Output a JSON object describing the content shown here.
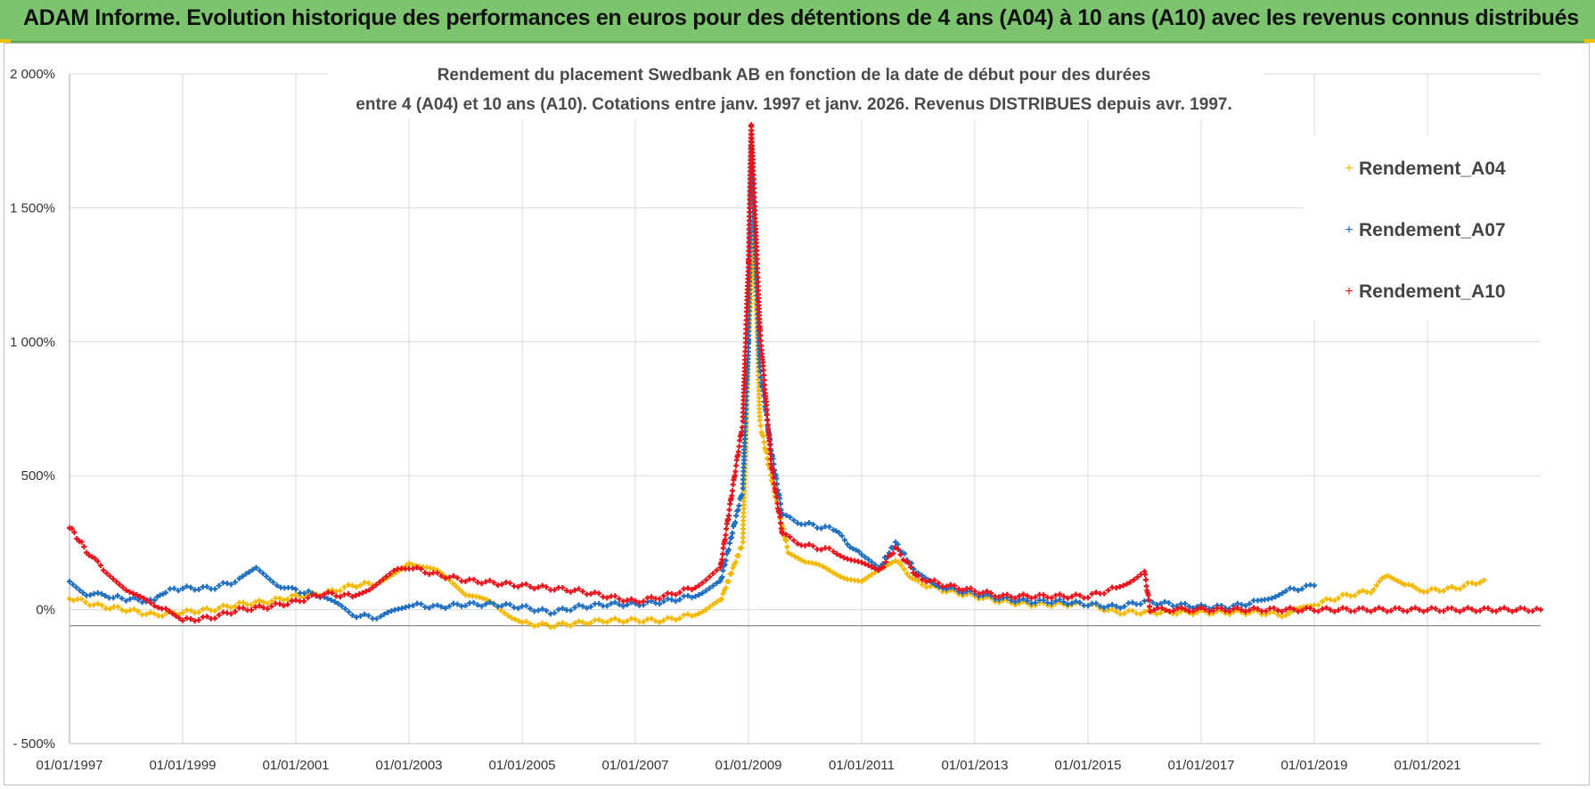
{
  "header": {
    "title": "ADAM Informe. Evolution historique des performances en euros pour des détentions de 4 ans (A04) à 10 ans (A10) avec les revenus connus distribués"
  },
  "colors": {
    "banner": "#7cc46e",
    "A04": "#f5b800",
    "A07": "#1f6fc0",
    "A10": "#e8131b"
  },
  "chart_data": {
    "type": "scatter",
    "title_line1": "Rendement du placement Swedbank AB en fonction de la date de début pour des durées",
    "title_line2": "entre 4 (A04) et 10 ans (A10).  Cotations entre janv. 1997 et janv. 2026. Revenus DISTRIBUES depuis avr. 1997.",
    "xlabel": "",
    "ylabel": "",
    "x_range": [
      1997.0,
      2023.0
    ],
    "ylim": [
      -500,
      2000
    ],
    "y_ticks": [
      2000,
      1500,
      1000,
      500,
      0,
      -500
    ],
    "y_tick_labels": [
      "2 000%",
      "1 500%",
      "1 000%",
      "500%",
      "0%",
      "- 500%"
    ],
    "x_ticks": [
      1997,
      1999,
      2001,
      2003,
      2005,
      2007,
      2009,
      2011,
      2013,
      2015,
      2017,
      2019,
      2021
    ],
    "x_tick_labels": [
      "01/01/1997",
      "01/01/1999",
      "01/01/2001",
      "01/01/2003",
      "01/01/2005",
      "01/01/2007",
      "01/01/2009",
      "01/01/2011",
      "01/01/2013",
      "01/01/2015",
      "01/01/2017",
      "01/01/2019",
      "01/01/2021"
    ],
    "legend_position": "right",
    "series": [
      {
        "name": "Rendement_A04",
        "color": "#f5b800",
        "points": [
          [
            1997.0,
            45
          ],
          [
            1997.5,
            15
          ],
          [
            1998.0,
            0
          ],
          [
            1998.5,
            -20
          ],
          [
            1999.0,
            -10
          ],
          [
            1999.5,
            0
          ],
          [
            2000.0,
            20
          ],
          [
            2000.5,
            30
          ],
          [
            2001.0,
            50
          ],
          [
            2001.5,
            60
          ],
          [
            2002.0,
            90
          ],
          [
            2002.5,
            100
          ],
          [
            2003.0,
            180
          ],
          [
            2003.5,
            140
          ],
          [
            2004.0,
            60
          ],
          [
            2004.5,
            20
          ],
          [
            2005.0,
            -50
          ],
          [
            2005.5,
            -60
          ],
          [
            2006.0,
            -50
          ],
          [
            2006.5,
            -40
          ],
          [
            2007.0,
            -40
          ],
          [
            2007.5,
            -40
          ],
          [
            2008.0,
            -20
          ],
          [
            2008.5,
            30
          ],
          [
            2008.9,
            250
          ],
          [
            2009.0,
            1000
          ],
          [
            2009.1,
            1440
          ],
          [
            2009.2,
            700
          ],
          [
            2009.5,
            400
          ],
          [
            2009.7,
            220
          ],
          [
            2010.0,
            180
          ],
          [
            2010.5,
            140
          ],
          [
            2011.0,
            100
          ],
          [
            2011.3,
            140
          ],
          [
            2011.6,
            180
          ],
          [
            2012.0,
            100
          ],
          [
            2012.5,
            70
          ],
          [
            2013.0,
            50
          ],
          [
            2013.5,
            30
          ],
          [
            2014.0,
            20
          ],
          [
            2015.0,
            20
          ],
          [
            2015.5,
            -10
          ],
          [
            2016.0,
            -10
          ],
          [
            2017.0,
            -10
          ],
          [
            2018.0,
            -10
          ],
          [
            2018.5,
            -20
          ],
          [
            2019.0,
            20
          ],
          [
            2019.5,
            50
          ],
          [
            2020.0,
            70
          ],
          [
            2020.3,
            130
          ],
          [
            2020.6,
            90
          ],
          [
            2021.0,
            70
          ],
          [
            2021.5,
            80
          ],
          [
            2022.0,
            110
          ]
        ]
      },
      {
        "name": "Rendement_A07",
        "color": "#1f6fc0",
        "points": [
          [
            1997.0,
            110
          ],
          [
            1997.3,
            60
          ],
          [
            1997.7,
            50
          ],
          [
            1998.0,
            40
          ],
          [
            1998.5,
            30
          ],
          [
            1998.7,
            70
          ],
          [
            1999.0,
            80
          ],
          [
            1999.5,
            80
          ],
          [
            2000.0,
            110
          ],
          [
            2000.3,
            150
          ],
          [
            2000.6,
            100
          ],
          [
            2001.0,
            70
          ],
          [
            2001.3,
            60
          ],
          [
            2001.5,
            50
          ],
          [
            2002.0,
            -20
          ],
          [
            2002.5,
            -30
          ],
          [
            2003.0,
            20
          ],
          [
            2003.5,
            10
          ],
          [
            2004.0,
            20
          ],
          [
            2004.5,
            20
          ],
          [
            2005.0,
            10
          ],
          [
            2005.5,
            -10
          ],
          [
            2006.0,
            10
          ],
          [
            2006.5,
            20
          ],
          [
            2007.0,
            20
          ],
          [
            2007.5,
            30
          ],
          [
            2008.0,
            50
          ],
          [
            2008.5,
            100
          ],
          [
            2008.9,
            450
          ],
          [
            2009.0,
            1000
          ],
          [
            2009.05,
            1730
          ],
          [
            2009.2,
            900
          ],
          [
            2009.4,
            600
          ],
          [
            2009.6,
            350
          ],
          [
            2010.0,
            320
          ],
          [
            2010.5,
            300
          ],
          [
            2011.0,
            200
          ],
          [
            2011.3,
            150
          ],
          [
            2011.6,
            250
          ],
          [
            2012.0,
            130
          ],
          [
            2012.5,
            80
          ],
          [
            2013.0,
            60
          ],
          [
            2013.5,
            40
          ],
          [
            2014.0,
            30
          ],
          [
            2014.5,
            30
          ],
          [
            2015.0,
            20
          ],
          [
            2015.5,
            10
          ],
          [
            2016.0,
            30
          ],
          [
            2016.5,
            20
          ],
          [
            2017.0,
            10
          ],
          [
            2017.5,
            10
          ],
          [
            2018.0,
            30
          ],
          [
            2018.5,
            70
          ],
          [
            2019.0,
            90
          ]
        ]
      },
      {
        "name": "Rendement_A10",
        "color": "#e8131b",
        "points": [
          [
            1997.0,
            310
          ],
          [
            1997.3,
            220
          ],
          [
            1997.6,
            150
          ],
          [
            1998.0,
            80
          ],
          [
            1998.5,
            10
          ],
          [
            1998.7,
            10
          ],
          [
            1999.0,
            -40
          ],
          [
            1999.5,
            -30
          ],
          [
            2000.0,
            0
          ],
          [
            2000.5,
            10
          ],
          [
            2001.0,
            30
          ],
          [
            2001.5,
            60
          ],
          [
            2002.0,
            50
          ],
          [
            2002.3,
            80
          ],
          [
            2002.6,
            130
          ],
          [
            2003.0,
            160
          ],
          [
            2003.5,
            130
          ],
          [
            2004.0,
            110
          ],
          [
            2004.5,
            100
          ],
          [
            2005.0,
            90
          ],
          [
            2005.5,
            80
          ],
          [
            2006.0,
            70
          ],
          [
            2006.5,
            50
          ],
          [
            2007.0,
            30
          ],
          [
            2007.5,
            50
          ],
          [
            2008.0,
            80
          ],
          [
            2008.5,
            150
          ],
          [
            2008.9,
            700
          ],
          [
            2009.0,
            1300
          ],
          [
            2009.05,
            1810
          ],
          [
            2009.2,
            1050
          ],
          [
            2009.4,
            550
          ],
          [
            2009.6,
            280
          ],
          [
            2010.0,
            240
          ],
          [
            2010.5,
            220
          ],
          [
            2011.0,
            170
          ],
          [
            2011.3,
            140
          ],
          [
            2011.6,
            230
          ],
          [
            2012.0,
            120
          ],
          [
            2012.5,
            90
          ],
          [
            2013.0,
            70
          ],
          [
            2013.5,
            50
          ],
          [
            2014.0,
            50
          ],
          [
            2014.5,
            50
          ],
          [
            2015.0,
            50
          ],
          [
            2015.5,
            80
          ],
          [
            2016.0,
            140
          ],
          [
            2016.1,
            0
          ],
          [
            2017.0,
            0
          ],
          [
            2018.0,
            0
          ],
          [
            2019.0,
            0
          ],
          [
            2020.0,
            0
          ],
          [
            2021.0,
            0
          ],
          [
            2022.0,
            0
          ],
          [
            2023.0,
            0
          ]
        ]
      }
    ]
  }
}
